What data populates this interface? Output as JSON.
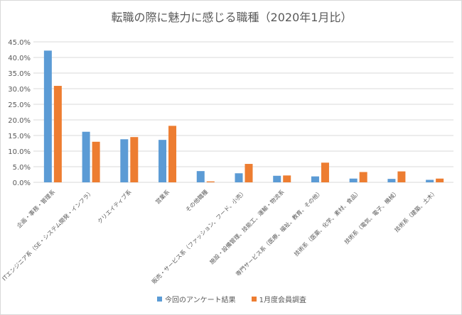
{
  "chart_data": {
    "type": "bar",
    "title": "転職の際に魅力に感じる職種（2020年1月比）",
    "categories": [
      "企画・事務・管理系",
      "ITエンジニア系（SE・システム開発・インフラ）",
      "クリエイティブ系",
      "営業系",
      "その他職種",
      "販売・サービス系（ファッション、フード、小売）",
      "施設・設備管理、技能工、運輸・物流系",
      "専門サービス系（医療、福祉、教育、その他）",
      "技術系（医薬、化学、素材、食品）",
      "技術系（電気、電子、機械）",
      "技術系（建築、土木）"
    ],
    "series": [
      {
        "name": "今回のアンケート結果",
        "color": "#5b9bd5",
        "values": [
          42.2,
          16.2,
          13.8,
          13.6,
          3.6,
          2.9,
          2.1,
          1.9,
          1.2,
          1.1,
          0.8
        ]
      },
      {
        "name": "1月度会員調査",
        "color": "#ed7d31",
        "values": [
          30.9,
          13.0,
          14.5,
          18.1,
          0.3,
          5.9,
          2.2,
          6.3,
          3.3,
          3.5,
          1.2
        ]
      }
    ],
    "yticks": [
      "0.0%",
      "5.0%",
      "10.0%",
      "15.0%",
      "20.0%",
      "25.0%",
      "30.0%",
      "35.0%",
      "40.0%",
      "45.0%"
    ],
    "ylim": [
      0,
      45
    ],
    "grid": true,
    "legend": "bottom"
  }
}
